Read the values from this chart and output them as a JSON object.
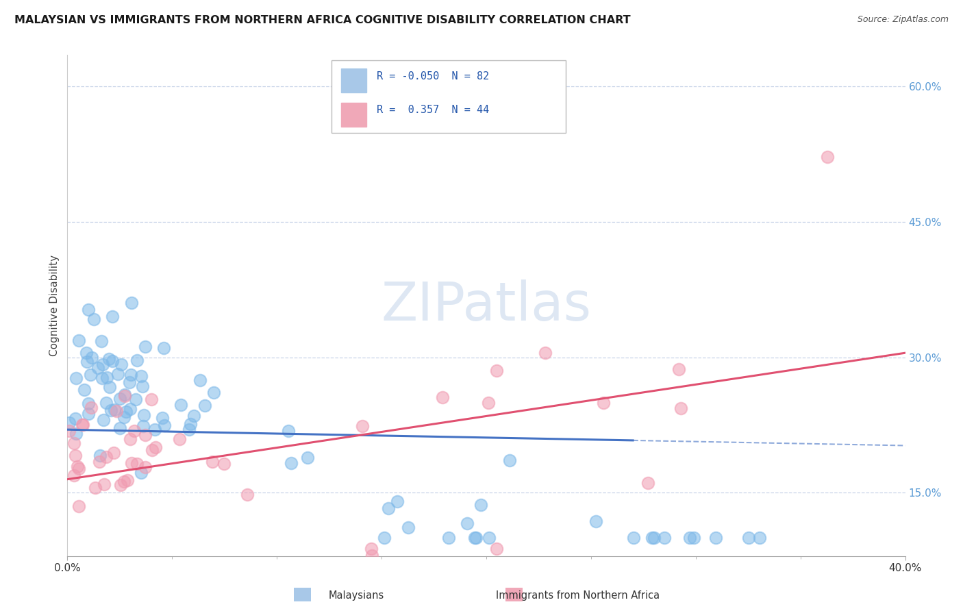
{
  "title": "MALAYSIAN VS IMMIGRANTS FROM NORTHERN AFRICA COGNITIVE DISABILITY CORRELATION CHART",
  "source": "Source: ZipAtlas.com",
  "ylabel": "Cognitive Disability",
  "right_yticks": [
    0.15,
    0.3,
    0.45,
    0.6
  ],
  "right_ytick_labels": [
    "15.0%",
    "30.0%",
    "45.0%",
    "60.0%"
  ],
  "watermark_text": "ZIPatlas",
  "blue_color": "#7db8e8",
  "pink_color": "#f09ab0",
  "blue_line_color": "#4472c4",
  "pink_line_color": "#e05070",
  "blue_r": -0.05,
  "blue_n": 82,
  "pink_r": 0.357,
  "pink_n": 44,
  "xmin": 0.0,
  "xmax": 0.4,
  "ymin": 0.08,
  "ymax": 0.635,
  "background_color": "#ffffff",
  "grid_color": "#c8d4e8",
  "title_fontsize": 11.5,
  "source_fontsize": 9,
  "legend_R1": "R = -0.050",
  "legend_N1": "N = 82",
  "legend_R2": "R =  0.357",
  "legend_N2": "N = 44"
}
